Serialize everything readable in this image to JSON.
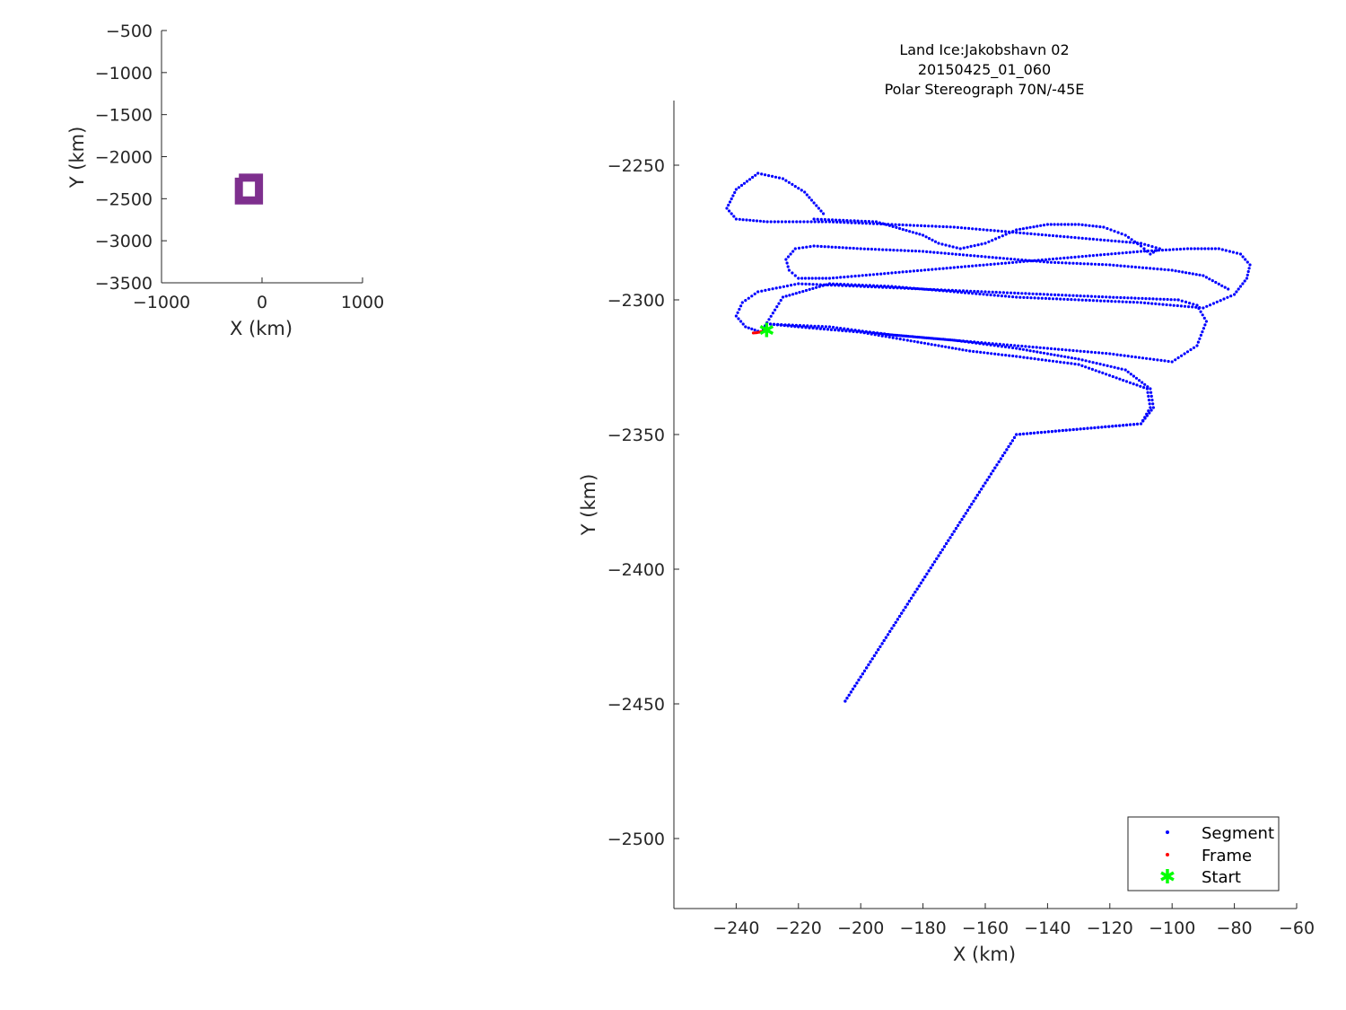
{
  "chart_data": [
    {
      "id": "overview",
      "type": "scatter",
      "title": "",
      "xlabel": "X (km)",
      "ylabel": "Y (km)",
      "xlim": [
        -1000,
        1000
      ],
      "ylim": [
        -3500,
        -500
      ],
      "xticks": [
        -1000,
        0,
        1000
      ],
      "yticks": [
        -3500,
        -3000,
        -2500,
        -2000,
        -1500,
        -1000,
        -500
      ],
      "grid": false,
      "series": [
        {
          "color": "#7e2f8e",
          "x": [
            -230,
            -30,
            -30,
            -230,
            -230
          ],
          "y": [
            -2250,
            -2250,
            -2520,
            -2520,
            -2250
          ]
        }
      ]
    },
    {
      "id": "detail",
      "type": "scatter",
      "title": [
        "Land Ice:Jakobshavn 02",
        "20150425_01_060",
        "Polar Stereograph 70N/-45E"
      ],
      "xlabel": "X (km)",
      "ylabel": "Y (km)",
      "xlim": [
        -260,
        -60
      ],
      "ylim": [
        -2526,
        -2226
      ],
      "xticks": [
        -240,
        -220,
        -200,
        -180,
        -160,
        -140,
        -120,
        -100,
        -80,
        -60
      ],
      "yticks": [
        -2500,
        -2450,
        -2400,
        -2350,
        -2300,
        -2250
      ],
      "grid": false,
      "legend_position": "bottom-right",
      "series": [
        {
          "name": "Segment",
          "color": "#0000ff",
          "x": [
            -229,
            -210,
            -190,
            -170,
            -150,
            -130,
            -115,
            -107,
            -106,
            -110,
            -150,
            -205,
            -205,
            -150,
            -110,
            -107,
            -108,
            -130,
            -150,
            -165,
            -175,
            -185,
            -200,
            -220,
            -229
          ],
          "y": [
            -2309,
            -2310,
            -2313,
            -2315,
            -2318,
            -2322,
            -2326,
            -2333,
            -2340,
            -2346,
            -2350,
            -2449,
            -2449,
            -2350,
            -2346,
            -2340,
            -2333,
            -2324,
            -2321,
            -2319,
            -2317,
            -2315,
            -2312,
            -2310,
            -2309
          ]
        },
        {
          "name": "Segment",
          "color": "#0000ff",
          "x": [
            -229,
            -220,
            -200,
            -180,
            -160,
            -140,
            -120,
            -100,
            -92,
            -89,
            -92,
            -98
          ],
          "y": [
            -2309,
            -2310,
            -2312,
            -2314,
            -2316,
            -2318,
            -2320,
            -2323,
            -2317,
            -2308,
            -2302,
            -2300
          ]
        },
        {
          "name": "Segment",
          "color": "#0000ff",
          "x": [
            -98,
            -120,
            -140,
            -160,
            -180,
            -200,
            -220,
            -233,
            -238,
            -240,
            -237,
            -232,
            -225,
            -210,
            -190,
            -170,
            -150,
            -130,
            -110,
            -90,
            -80,
            -76,
            -75,
            -78,
            -85,
            -95,
            -110,
            -130,
            -150,
            -170,
            -190,
            -210,
            -220,
            -223,
            -224,
            -221,
            -215,
            -200,
            -180,
            -160,
            -140,
            -120,
            -100,
            -90,
            -82
          ],
          "y": [
            -2300,
            -2299,
            -2298,
            -2297,
            -2296,
            -2295,
            -2294,
            -2297,
            -2301,
            -2306,
            -2310,
            -2312,
            -2299,
            -2294,
            -2295,
            -2297,
            -2299,
            -2300,
            -2301,
            -2303,
            -2298,
            -2292,
            -2287,
            -2283,
            -2281,
            -2281,
            -2282,
            -2284,
            -2286,
            -2288,
            -2290,
            -2292,
            -2292,
            -2289,
            -2285,
            -2281,
            -2280,
            -2281,
            -2282,
            -2284,
            -2286,
            -2287,
            -2289,
            -2291,
            -2296
          ]
        },
        {
          "name": "Segment",
          "color": "#0000ff",
          "x": [
            -215,
            -195,
            -180,
            -175,
            -168,
            -160,
            -150,
            -140,
            -130,
            -122,
            -115,
            -110,
            -107,
            -104,
            -110,
            -130,
            -150,
            -170,
            -190,
            -210,
            -230,
            -240,
            -243,
            -240,
            -233,
            -225,
            -218,
            -212
          ],
          "y": [
            -2270,
            -2271,
            -2276,
            -2279,
            -2281,
            -2279,
            -2274,
            -2272,
            -2272,
            -2273,
            -2276,
            -2280,
            -2283,
            -2281,
            -2279,
            -2277,
            -2275,
            -2273,
            -2272,
            -2271,
            -2271,
            -2270,
            -2266,
            -2259,
            -2253,
            -2255,
            -2260,
            -2268
          ]
        },
        {
          "name": "Frame",
          "color": "#ff0000",
          "x": [
            -234.5,
            -233.5,
            -232.5,
            -231.5
          ],
          "y": [
            -2312.3,
            -2312.2,
            -2312.0,
            -2311.7
          ]
        },
        {
          "name": "Start",
          "color": "#00ff00",
          "x": [
            -230.2
          ],
          "y": [
            -2311.2
          ]
        }
      ],
      "legend": [
        "Segment",
        "Frame",
        "Start"
      ]
    }
  ]
}
